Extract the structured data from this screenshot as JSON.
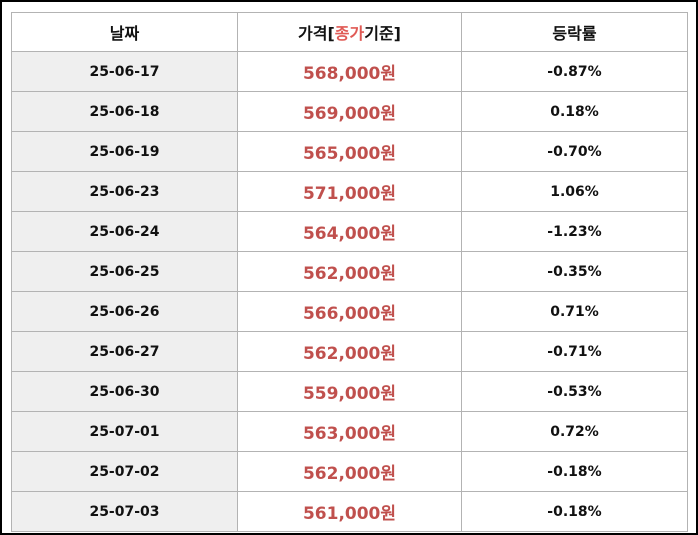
{
  "headers": {
    "date": "날짜",
    "price_prefix": "가격[",
    "price_highlight": "종가",
    "price_suffix": "기준]",
    "change": "등락률"
  },
  "colors": {
    "price": "#c0504d",
    "highlight": "#e05a55",
    "date_bg": "#efefef",
    "border": "#b3b3b3"
  },
  "rows": [
    {
      "date": "25-06-17",
      "price": "568,000원",
      "change": "-0.87%"
    },
    {
      "date": "25-06-18",
      "price": "569,000원",
      "change": "0.18%"
    },
    {
      "date": "25-06-19",
      "price": "565,000원",
      "change": "-0.70%"
    },
    {
      "date": "25-06-23",
      "price": "571,000원",
      "change": "1.06%"
    },
    {
      "date": "25-06-24",
      "price": "564,000원",
      "change": "-1.23%"
    },
    {
      "date": "25-06-25",
      "price": "562,000원",
      "change": "-0.35%"
    },
    {
      "date": "25-06-26",
      "price": "566,000원",
      "change": "0.71%"
    },
    {
      "date": "25-06-27",
      "price": "562,000원",
      "change": "-0.71%"
    },
    {
      "date": "25-06-30",
      "price": "559,000원",
      "change": "-0.53%"
    },
    {
      "date": "25-07-01",
      "price": "563,000원",
      "change": "0.72%"
    },
    {
      "date": "25-07-02",
      "price": "562,000원",
      "change": "-0.18%"
    },
    {
      "date": "25-07-03",
      "price": "561,000원",
      "change": "-0.18%"
    }
  ]
}
